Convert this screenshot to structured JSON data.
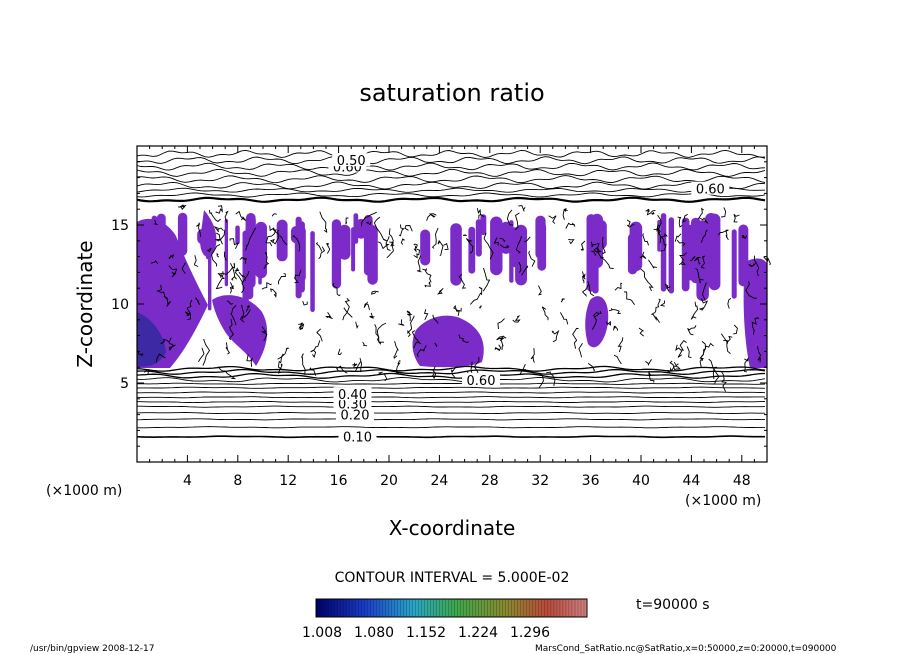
{
  "chart_data": {
    "type": "contour",
    "title": "saturation ratio",
    "xlabel": "X-coordinate",
    "ylabel": "Z-coordinate",
    "x_unit_left": "(×1000 m)",
    "x_unit_right": "(×1000 m)",
    "xlim": [
      0,
      50
    ],
    "ylim": [
      0,
      20
    ],
    "x_ticks": [
      4,
      8,
      12,
      16,
      20,
      24,
      28,
      32,
      36,
      40,
      44,
      48
    ],
    "y_ticks": [
      5,
      10,
      15
    ],
    "contour_lines": [
      {
        "label": "0.10",
        "z": 1.6
      },
      {
        "label": "0.20",
        "z": 3.0
      },
      {
        "label": "0.30",
        "z": 3.7
      },
      {
        "label": "0.40",
        "z": 4.3
      },
      {
        "label": "0.60",
        "z": 5.2
      },
      {
        "label": "0.60",
        "z": 18.7
      },
      {
        "label": "0.50",
        "z": 19.1
      },
      {
        "label": "0.60",
        "z": 17.3
      }
    ],
    "contour_interval_text": "CONTOUR INTERVAL = 5.000E-02",
    "colorbar": {
      "ticks": [
        "1.008",
        "1.080",
        "1.152",
        "1.224",
        "1.296"
      ],
      "min": 1.008,
      "max": 1.296
    },
    "time_text": "t=90000 s",
    "shaded_color": "#7b2bc8",
    "shaded_dark_color": "#2a2a9a"
  },
  "footer": {
    "left": "/usr/bin/gpview   2008-12-17",
    "right": "MarsCond_SatRatio.nc@SatRatio,x=0:50000,z=0:20000,t=090000"
  }
}
